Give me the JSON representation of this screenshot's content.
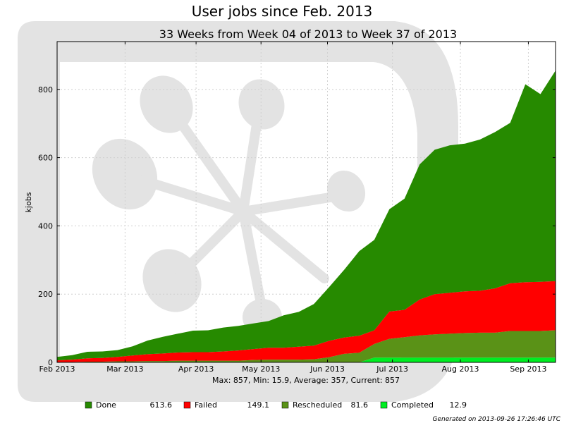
{
  "page": {
    "title": "User jobs since Feb. 2013",
    "footer": "Generated on 2013-09-26 17:26:46 UTC"
  },
  "chart_data": {
    "type": "area",
    "stacked": true,
    "subtitle": "33 Weeks from Week 04 of 2013 to Week 37 of 2013",
    "ylabel": "kjobs",
    "xlabel": "",
    "ylim": [
      0,
      940
    ],
    "yticks": [
      0,
      200,
      400,
      600,
      800
    ],
    "xlim_weeks": [
      4,
      37
    ],
    "xticks": [
      {
        "label": "Feb 2013",
        "week": 4.0
      },
      {
        "label": "Mar 2013",
        "week": 8.5
      },
      {
        "label": "Apr 2013",
        "week": 13.2
      },
      {
        "label": "May 2013",
        "week": 17.5
      },
      {
        "label": "Jun 2013",
        "week": 21.9
      },
      {
        "label": "Jul 2013",
        "week": 26.2
      },
      {
        "label": "Aug 2013",
        "week": 30.7
      },
      {
        "label": "Sep 2013",
        "week": 35.2
      }
    ],
    "grid": true,
    "x_weeks": [
      4,
      5,
      6,
      7,
      8,
      9,
      10,
      11,
      12,
      13,
      14,
      15,
      16,
      17,
      18,
      19,
      20,
      21,
      22,
      23,
      24,
      25,
      26,
      27,
      28,
      29,
      30,
      31,
      32,
      33,
      34,
      35,
      36,
      37
    ],
    "series": [
      {
        "name": "Completed",
        "color": "#00ee22",
        "values": [
          0,
          0,
          0,
          0,
          0,
          0,
          0,
          0,
          0,
          0,
          0,
          0,
          0,
          0,
          0,
          0,
          0,
          0,
          0,
          0,
          0,
          14,
          14,
          14,
          14,
          14,
          14,
          14,
          14,
          14,
          14,
          14,
          14,
          14
        ]
      },
      {
        "name": "Rescheduled",
        "color": "#5a9217",
        "values": [
          1,
          1,
          2,
          2,
          3,
          3,
          4,
          4,
          5,
          5,
          5,
          5,
          5,
          7,
          8,
          8,
          8,
          9,
          15,
          25,
          28,
          40,
          55,
          60,
          65,
          68,
          70,
          72,
          73,
          73,
          78,
          78,
          78,
          80
        ]
      },
      {
        "name": "Failed",
        "color": "#ff0000",
        "values": [
          5,
          7,
          10,
          11,
          13,
          17,
          20,
          22,
          24,
          25,
          25,
          27,
          30,
          32,
          35,
          35,
          38,
          40,
          48,
          48,
          50,
          40,
          80,
          80,
          105,
          118,
          120,
          122,
          123,
          130,
          140,
          143,
          144,
          144
        ]
      },
      {
        "name": "Done",
        "color": "#268a00",
        "values": [
          10,
          13,
          19,
          19,
          20,
          27,
          40,
          49,
          55,
          63,
          64,
          70,
          72,
          75,
          78,
          95,
          102,
          122,
          157,
          198,
          248,
          265,
          300,
          326,
          396,
          423,
          432,
          433,
          443,
          458,
          470,
          580,
          550,
          617
        ]
      }
    ],
    "stats": "Max: 857, Min: 15.9, Average: 357, Current: 857",
    "legend": [
      {
        "name": "Done",
        "value": "613.6",
        "color": "#268a00"
      },
      {
        "name": "Failed",
        "value": "149.1",
        "color": "#ff0000"
      },
      {
        "name": "Rescheduled",
        "value": "81.6",
        "color": "#5a9217"
      },
      {
        "name": "Completed",
        "value": "12.9",
        "color": "#00ee22"
      }
    ],
    "legend_placement": "bottom"
  }
}
